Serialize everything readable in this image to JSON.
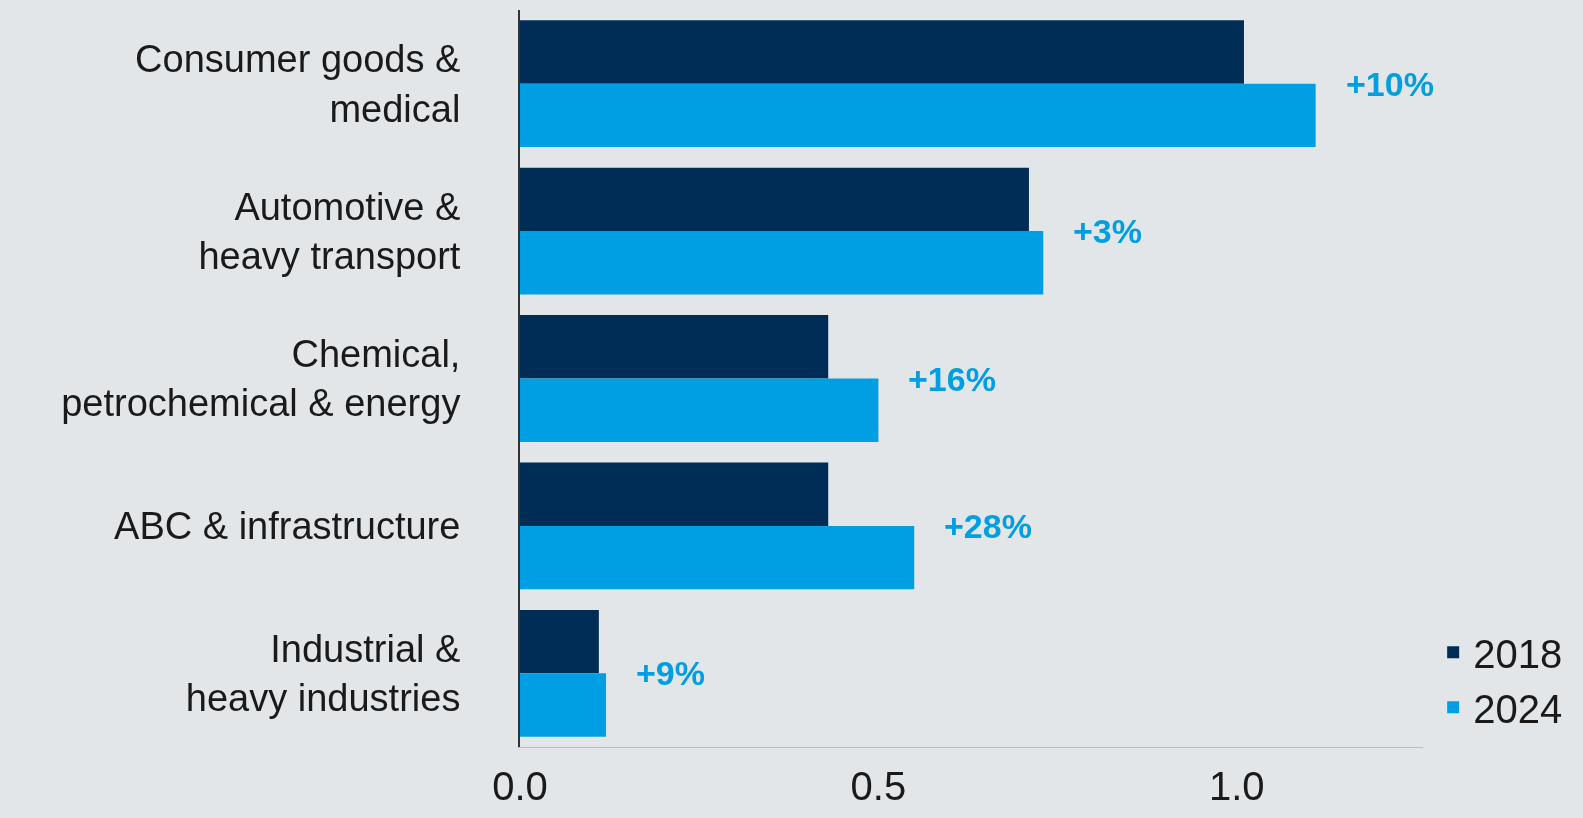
{
  "chart_data": {
    "type": "bar",
    "orientation": "horizontal",
    "categories": [
      "Consumer goods &\nmedical",
      "Automotive &\nheavy transport",
      "Chemical,\npetrochemical & energy",
      "ABC & infrastructure",
      "Industrial &\nheavy industries"
    ],
    "series": [
      {
        "name": "2018",
        "color": "#002d55",
        "values": [
          1.01,
          0.71,
          0.43,
          0.43,
          0.11
        ]
      },
      {
        "name": "2024",
        "color": "#009fe3",
        "values": [
          1.11,
          0.73,
          0.5,
          0.55,
          0.12
        ]
      }
    ],
    "xticks": [
      {
        "value": 0,
        "label": "0.0"
      },
      {
        "value": 0.5,
        "label": "0.5"
      },
      {
        "value": 1,
        "label": "1.0"
      }
    ],
    "xlim": [
      0,
      1.26
    ],
    "annotations": [
      "+10%",
      "+3%",
      "+16%",
      "+28%",
      "+9%"
    ],
    "legend": "bottom right",
    "grid": false
  }
}
